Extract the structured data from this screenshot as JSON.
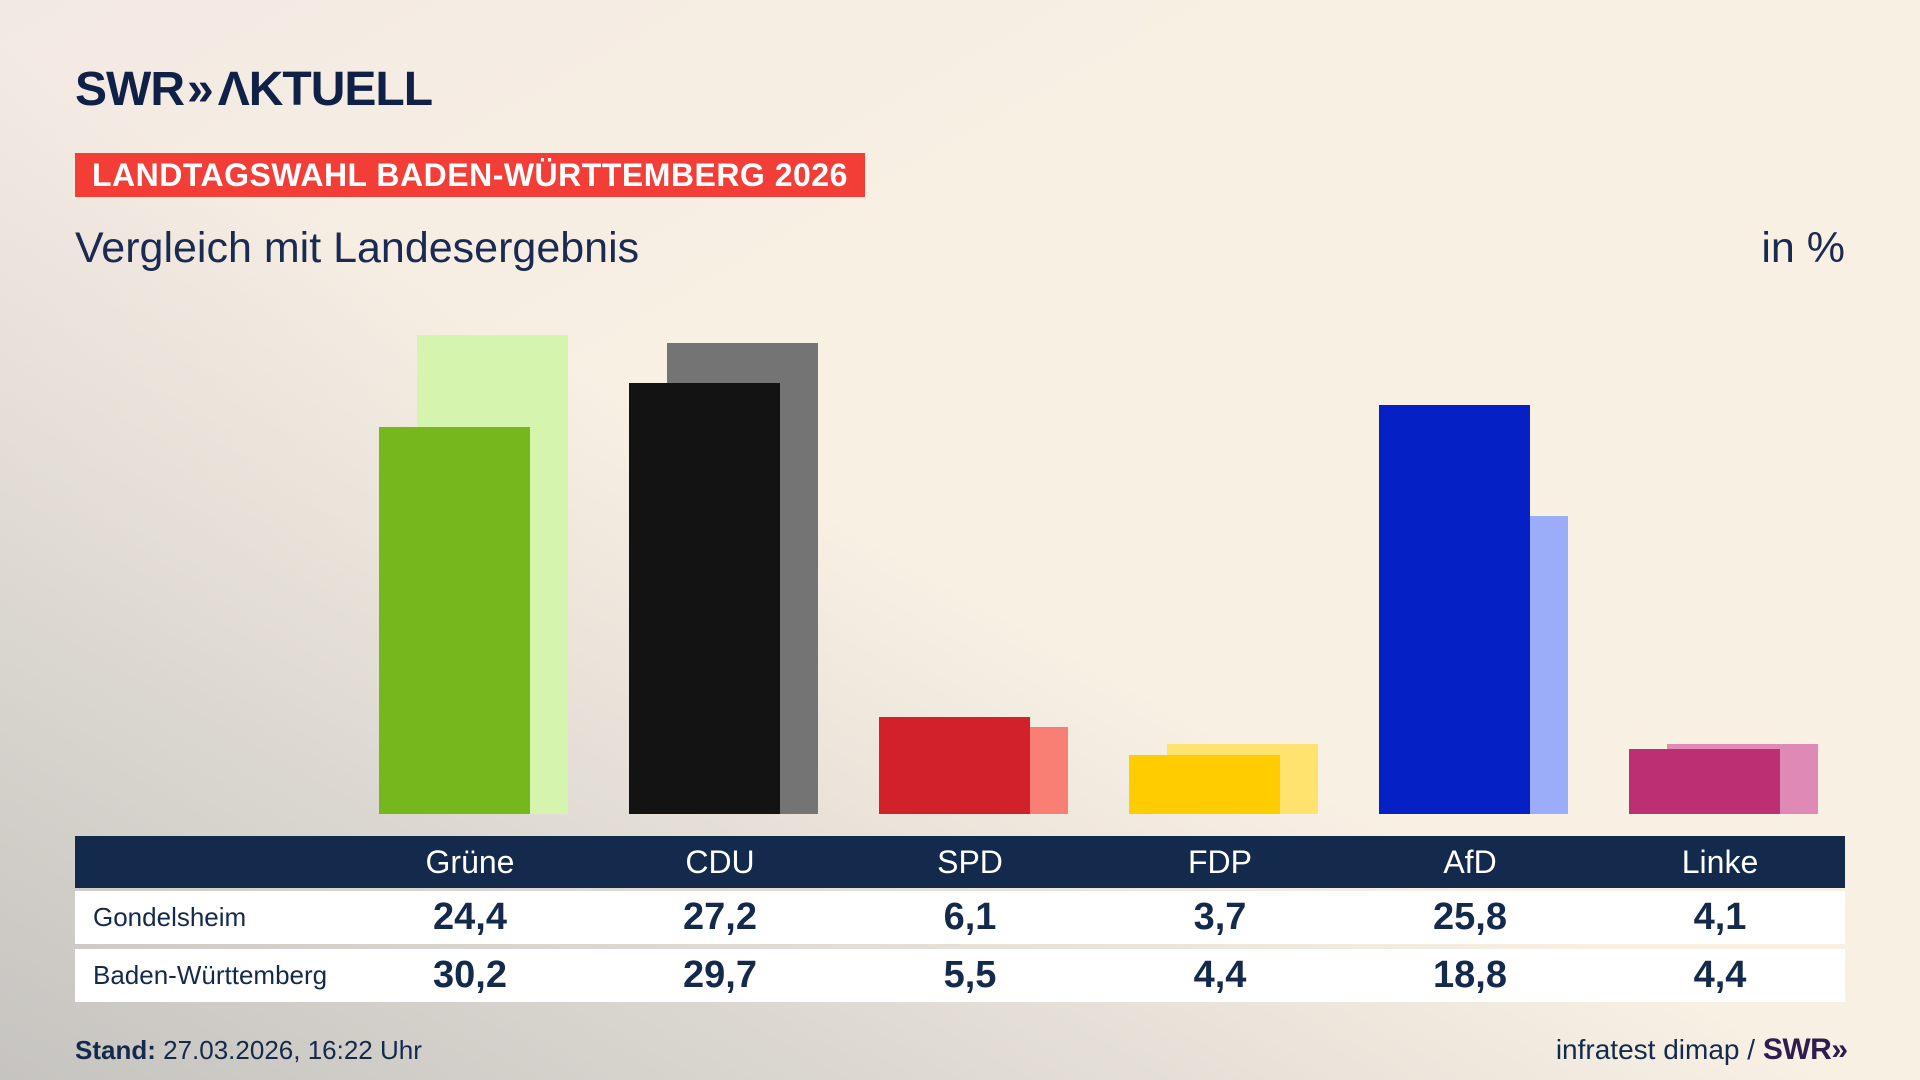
{
  "brand": {
    "logo_swr": "SWR",
    "logo_chevrons": "»",
    "logo_aktuell": "ΛKTUELL"
  },
  "banner": {
    "text": "LANDTAGSWAHL BADEN-WÜRTTEMBERG 2026",
    "bg_color": "#f23e36"
  },
  "title": "Vergleich mit Landesergebnis",
  "unit_label": "in %",
  "chart_data": {
    "type": "bar",
    "title": "Vergleich mit Landesergebnis",
    "unit": "in %",
    "categories": [
      "Grüne",
      "CDU",
      "SPD",
      "FDP",
      "AfD",
      "Linke"
    ],
    "series": [
      {
        "name": "Gondelsheim",
        "values": [
          24.4,
          27.2,
          6.1,
          3.7,
          25.8,
          4.1
        ],
        "colors": [
          "#77b71e",
          "#131313",
          "#d3212b",
          "#ffcc00",
          "#0520c5",
          "#bc3073"
        ]
      },
      {
        "name": "Baden-Württemberg",
        "values": [
          30.2,
          29.7,
          5.5,
          4.4,
          18.8,
          4.4
        ],
        "colors": [
          "#d5f4ae",
          "#747474",
          "#f97e73",
          "#ffe36e",
          "#9badf9",
          "#de89b6"
        ]
      }
    ],
    "ylim": [
      0,
      31
    ],
    "grid": false,
    "bar_style": "overlapping-pairs, state result offset behind municipal result",
    "legend_position": "table-below-chart"
  },
  "table": {
    "header": [
      "Grüne",
      "CDU",
      "SPD",
      "FDP",
      "AfD",
      "Linke"
    ],
    "rows": [
      {
        "label": "Gondelsheim",
        "values": [
          "24,4",
          "27,2",
          "6,1",
          "3,7",
          "25,8",
          "4,1"
        ]
      },
      {
        "label": "Baden-Württemberg",
        "values": [
          "30,2",
          "29,7",
          "5,5",
          "4,4",
          "18,8",
          "4,4"
        ]
      }
    ]
  },
  "footer": {
    "stand_label": "Stand:",
    "stand_value": " 27.03.2026, 16:22 Uhr",
    "source_text": "infratest dimap / ",
    "source_brand_swr": "SWR",
    "source_brand_chevrons": "»"
  },
  "colors": {
    "background": "#f8f0e3",
    "navy": "#142a4d",
    "banner_red": "#f23e36",
    "table_row_bg": "#ffffff",
    "footer_brand_purple": "#311c4e"
  }
}
